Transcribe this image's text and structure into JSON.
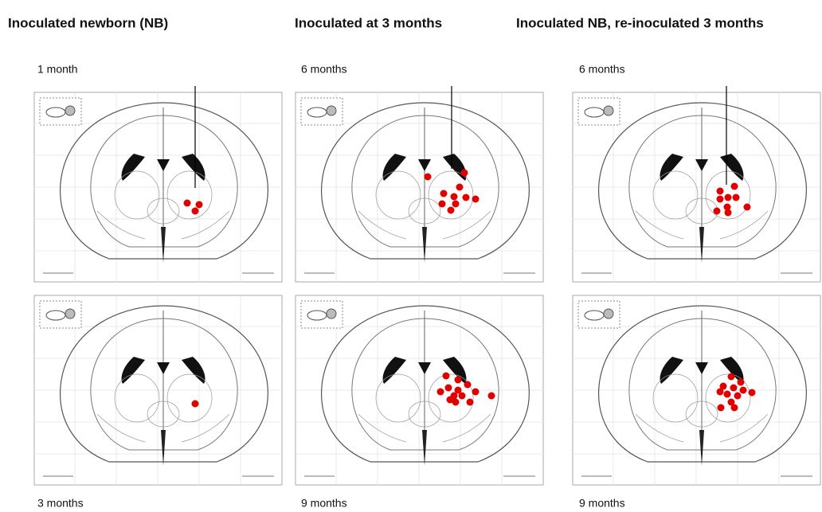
{
  "columns": [
    {
      "title": "Inoculated newborn (NB)",
      "top_label": "1 month",
      "bottom_label": "3 months"
    },
    {
      "title": "Inoculated at 3 months",
      "top_label": "6 months",
      "bottom_label": "9 months"
    },
    {
      "title": "Inoculated NB, re-inoculated 3 months",
      "top_label": "6 months",
      "bottom_label": "9 months"
    }
  ]
}
